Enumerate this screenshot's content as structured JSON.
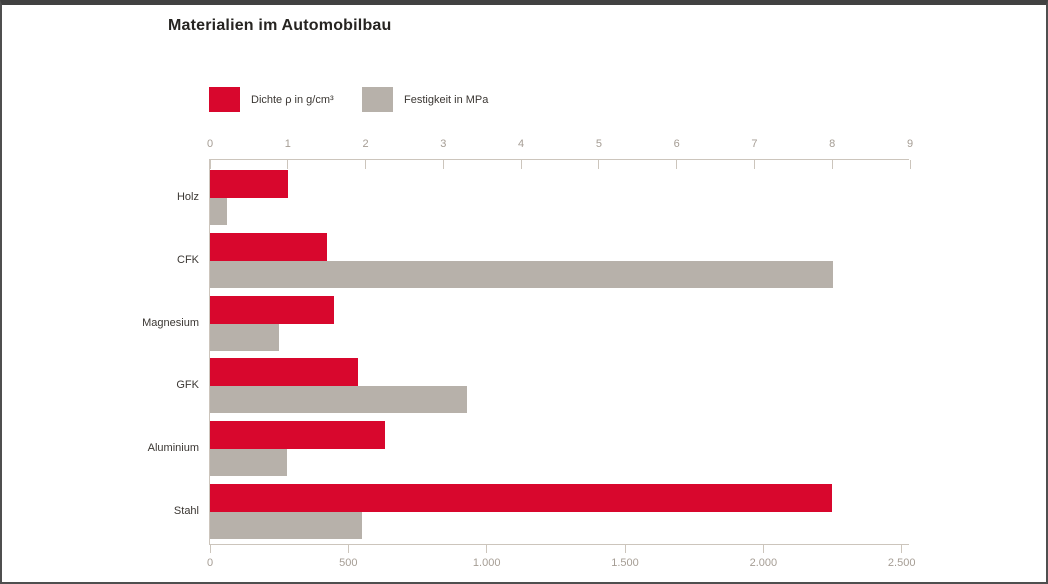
{
  "title": "Materialien im Automobilbau",
  "legend": [
    {
      "label": "Dichte ρ in g/cm³",
      "color": "#d8072d"
    },
    {
      "label": "Festigkeit in MPa",
      "color": "#b7b1aa"
    }
  ],
  "colors": {
    "series_dichte": "#d8072d",
    "series_festigkeit": "#b7b1aa",
    "axis_line": "#ccc5bc",
    "tick_text": "#a59d94",
    "category_text": "#3b3733",
    "title_text": "#262421"
  },
  "chart_data": {
    "type": "bar",
    "orientation": "horizontal",
    "title": "Materialien im Automobilbau",
    "categories": [
      "Holz",
      "CFK",
      "Magnesium",
      "GFK",
      "Aluminium",
      "Stahl"
    ],
    "series": [
      {
        "name": "Dichte ρ in g/cm³",
        "axis": "top",
        "color": "#d8072d",
        "values": [
          1.0,
          1.5,
          1.6,
          1.9,
          2.25,
          8.0
        ]
      },
      {
        "name": "Festigkeit in MPa",
        "axis": "bottom",
        "color": "#b7b1aa",
        "values": [
          60,
          2250,
          250,
          930,
          280,
          550
        ]
      }
    ],
    "top_axis": {
      "min": 0,
      "max": 9,
      "ticks": [
        0,
        1,
        2,
        3,
        4,
        5,
        6,
        7,
        8,
        9
      ],
      "tick_labels": [
        "0",
        "1",
        "2",
        "3",
        "4",
        "5",
        "6",
        "7",
        "8",
        "9"
      ]
    },
    "bottom_axis": {
      "min": 0,
      "max": 2500,
      "ticks": [
        0,
        500,
        1000,
        1500,
        2000,
        2500
      ],
      "tick_labels": [
        "0",
        "500",
        "1.000",
        "1.500",
        "2.000",
        "2.500"
      ]
    },
    "grid": false,
    "legend_position": "top-left"
  }
}
